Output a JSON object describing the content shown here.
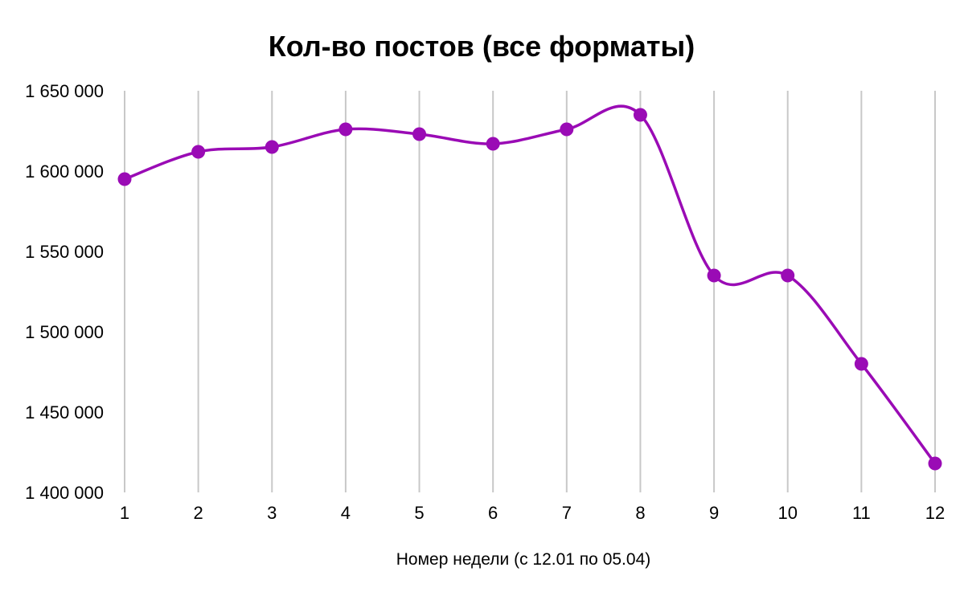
{
  "chart_data": {
    "type": "line",
    "title": "Кол-во постов (все форматы)",
    "xlabel": "Номер недели (с 12.01 по 05.04)",
    "ylabel": "",
    "categories": [
      "1",
      "2",
      "3",
      "4",
      "5",
      "6",
      "7",
      "8",
      "9",
      "10",
      "11",
      "12"
    ],
    "series": [
      {
        "values": [
          1595000,
          1612000,
          1615000,
          1626000,
          1623000,
          1617000,
          1626000,
          1635000,
          1535000,
          1535000,
          1480000,
          1418000
        ],
        "color": "#9a0bb5"
      }
    ],
    "y_ticks": [
      "1 400 000",
      "1 450 000",
      "1 500 000",
      "1 550 000",
      "1 600 000",
      "1 650 000"
    ],
    "y_tick_values": [
      1400000,
      1450000,
      1500000,
      1550000,
      1600000,
      1650000
    ],
    "ylim": [
      1400000,
      1650000
    ],
    "grid": "vertical",
    "legend": "none",
    "smooth": true,
    "gridline_color": "#c8c8c8"
  }
}
